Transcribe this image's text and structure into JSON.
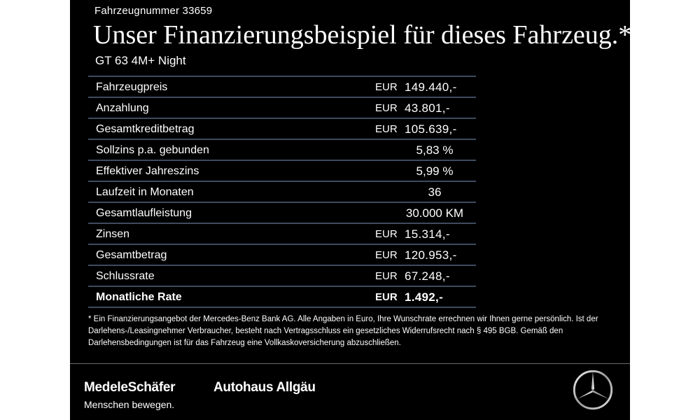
{
  "header": {
    "vehicle_number": "Fahrzeugnummer 33659",
    "headline": "Unser Finanzierungsbeispiel für dieses Fahrzeug.*",
    "model": "GT 63 4M+ Night"
  },
  "table": {
    "rows": [
      {
        "label": "Fahrzeugpreis",
        "currency": "EUR",
        "value": "149.440,-"
      },
      {
        "label": "Anzahlung",
        "currency": "EUR",
        "value": "43.801,-"
      },
      {
        "label": "Gesamtkreditbetrag",
        "currency": "EUR",
        "value": "105.639,-"
      },
      {
        "label": "Sollzins p.a. gebunden",
        "currency": "",
        "value": "5,83 %"
      },
      {
        "label": "Effektiver Jahreszins",
        "currency": "",
        "value": "5,99 %"
      },
      {
        "label": "Laufzeit in Monaten",
        "currency": "",
        "value": "36"
      },
      {
        "label": "Gesamtlaufleistung",
        "currency": "",
        "value": "30.000 KM"
      },
      {
        "label": "Zinsen",
        "currency": "EUR",
        "value": "15.314,-"
      },
      {
        "label": "Gesamtbetrag",
        "currency": "EUR",
        "value": "120.953,-"
      },
      {
        "label": "Schlussrate",
        "currency": "EUR",
        "value": "67.248,-"
      },
      {
        "label": "Monatliche Rate",
        "currency": "EUR",
        "value": "1.492,-"
      }
    ]
  },
  "footnote": "* Ein Finanzierungsangebot der Mercedes-Benz Bank AG. Alle Angaben in Euro, Ihre Wunschrate errechnen wir Ihnen gerne persönlich. Ist der Darlehens-/Leasingnehmer Verbraucher, besteht nach Vertragsschluss ein gesetzliches Widerrufsrecht nach § 495 BGB. Gemäß den Darlehensbedingungen ist für das Fahrzeug eine Vollkaskoversicherung abzuschließen.",
  "footer": {
    "brand1": "MedeleSchäfer",
    "slogan": "Menschen bewegen.",
    "brand2": "Autohaus Allgäu",
    "logo_icon": "mercedes-star-icon"
  },
  "colors": {
    "background": "#000000",
    "text": "#ffffff",
    "table_rule": "#3d4a60",
    "page_margin": "#ffffff"
  }
}
